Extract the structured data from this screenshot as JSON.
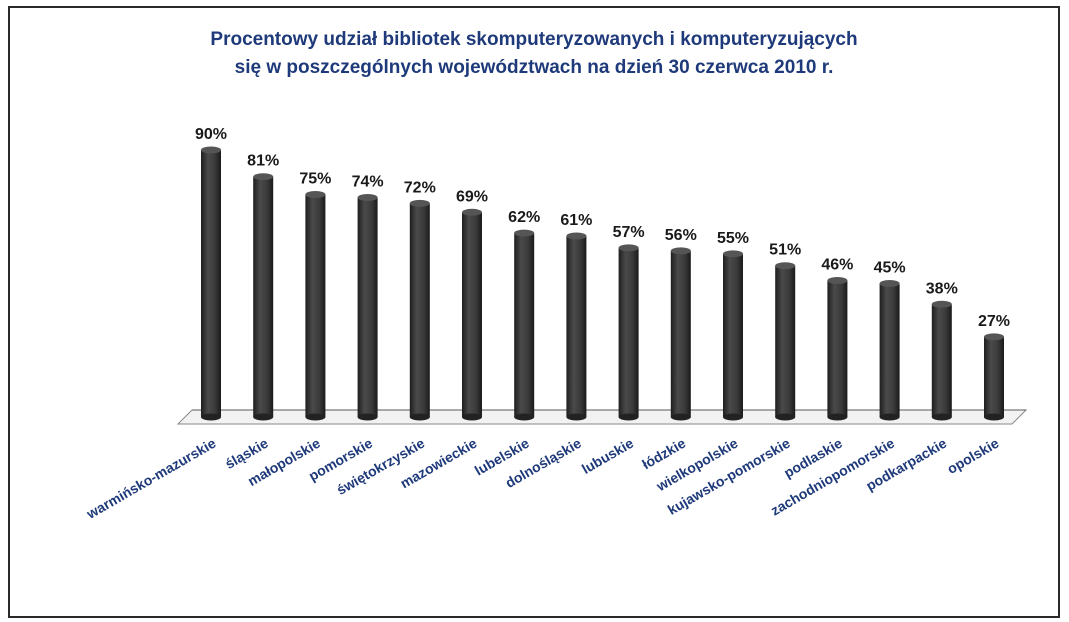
{
  "chart_data": {
    "type": "bar",
    "title_line1": "Procentowy udział bibliotek skomputeryzowanych i komputeryzujących",
    "title_line2": "się w poszczególnych województwach  na dzień 30 czerwca 2010 r.",
    "categories": [
      "warmińsko-mazurskie",
      "śląskie",
      "małopolskie",
      "pomorskie",
      "świętokrzyskie",
      "mazowieckie",
      "lubelskie",
      "dolnośląskie",
      "lubuskie",
      "łódzkie",
      "wielkopolskie",
      "kujawsko-pomorskie",
      "podlaskie",
      "zachodniopomorskie",
      "podkarpackie",
      "opolskie"
    ],
    "values": [
      90,
      81,
      75,
      74,
      72,
      69,
      62,
      61,
      57,
      56,
      55,
      51,
      46,
      45,
      38,
      27
    ],
    "value_labels": [
      "90%",
      "81%",
      "75%",
      "74%",
      "72%",
      "69%",
      "62%",
      "61%",
      "57%",
      "56%",
      "55%",
      "51%",
      "46%",
      "45%",
      "38%",
      "27%"
    ],
    "ylim": [
      0,
      100
    ],
    "grid": false,
    "legend": "none",
    "colors": {
      "bar": "#3a3a3a",
      "title": "#1f3a7a",
      "labels": "#1f3a7a"
    }
  }
}
